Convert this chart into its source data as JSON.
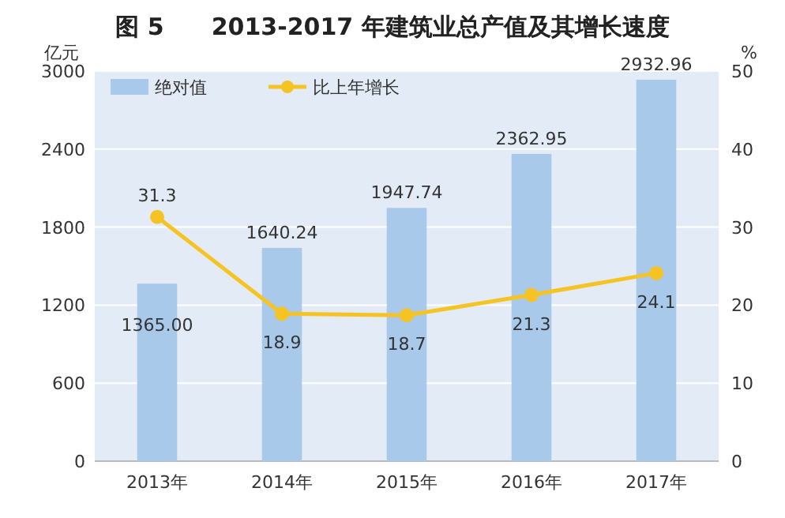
{
  "chart_data": {
    "type": "bar",
    "title": "图 5　　2013-2017 年建筑业总产值及其增长速度",
    "ylabel": "亿元",
    "y2label": "%",
    "categories": [
      "2013年",
      "2014年",
      "2015年",
      "2016年",
      "2017年"
    ],
    "series": [
      {
        "name": "绝对值",
        "color": "#a9c9ea",
        "values": [
          1365.0,
          1640.24,
          1947.74,
          2362.95,
          2932.96
        ],
        "value_labels": [
          "1365.00",
          "1640.24",
          "1947.74",
          "2362.95",
          "2932.96"
        ]
      },
      {
        "name": "比上年增长",
        "type": "line",
        "axis": "y2",
        "color": "#f6c324",
        "values": [
          31.3,
          18.9,
          18.7,
          21.3,
          24.1
        ],
        "value_labels": [
          "31.3",
          "18.9",
          "18.7",
          "21.3",
          "24.1"
        ]
      }
    ],
    "ylim": [
      0,
      3000
    ],
    "yticks": [
      0,
      600,
      1200,
      1800,
      2400,
      3000
    ],
    "y2lim": [
      0,
      50
    ],
    "y2ticks": [
      0,
      10,
      20,
      30,
      40,
      50
    ],
    "grid": "y",
    "legend": "top left",
    "marker": "circle"
  }
}
